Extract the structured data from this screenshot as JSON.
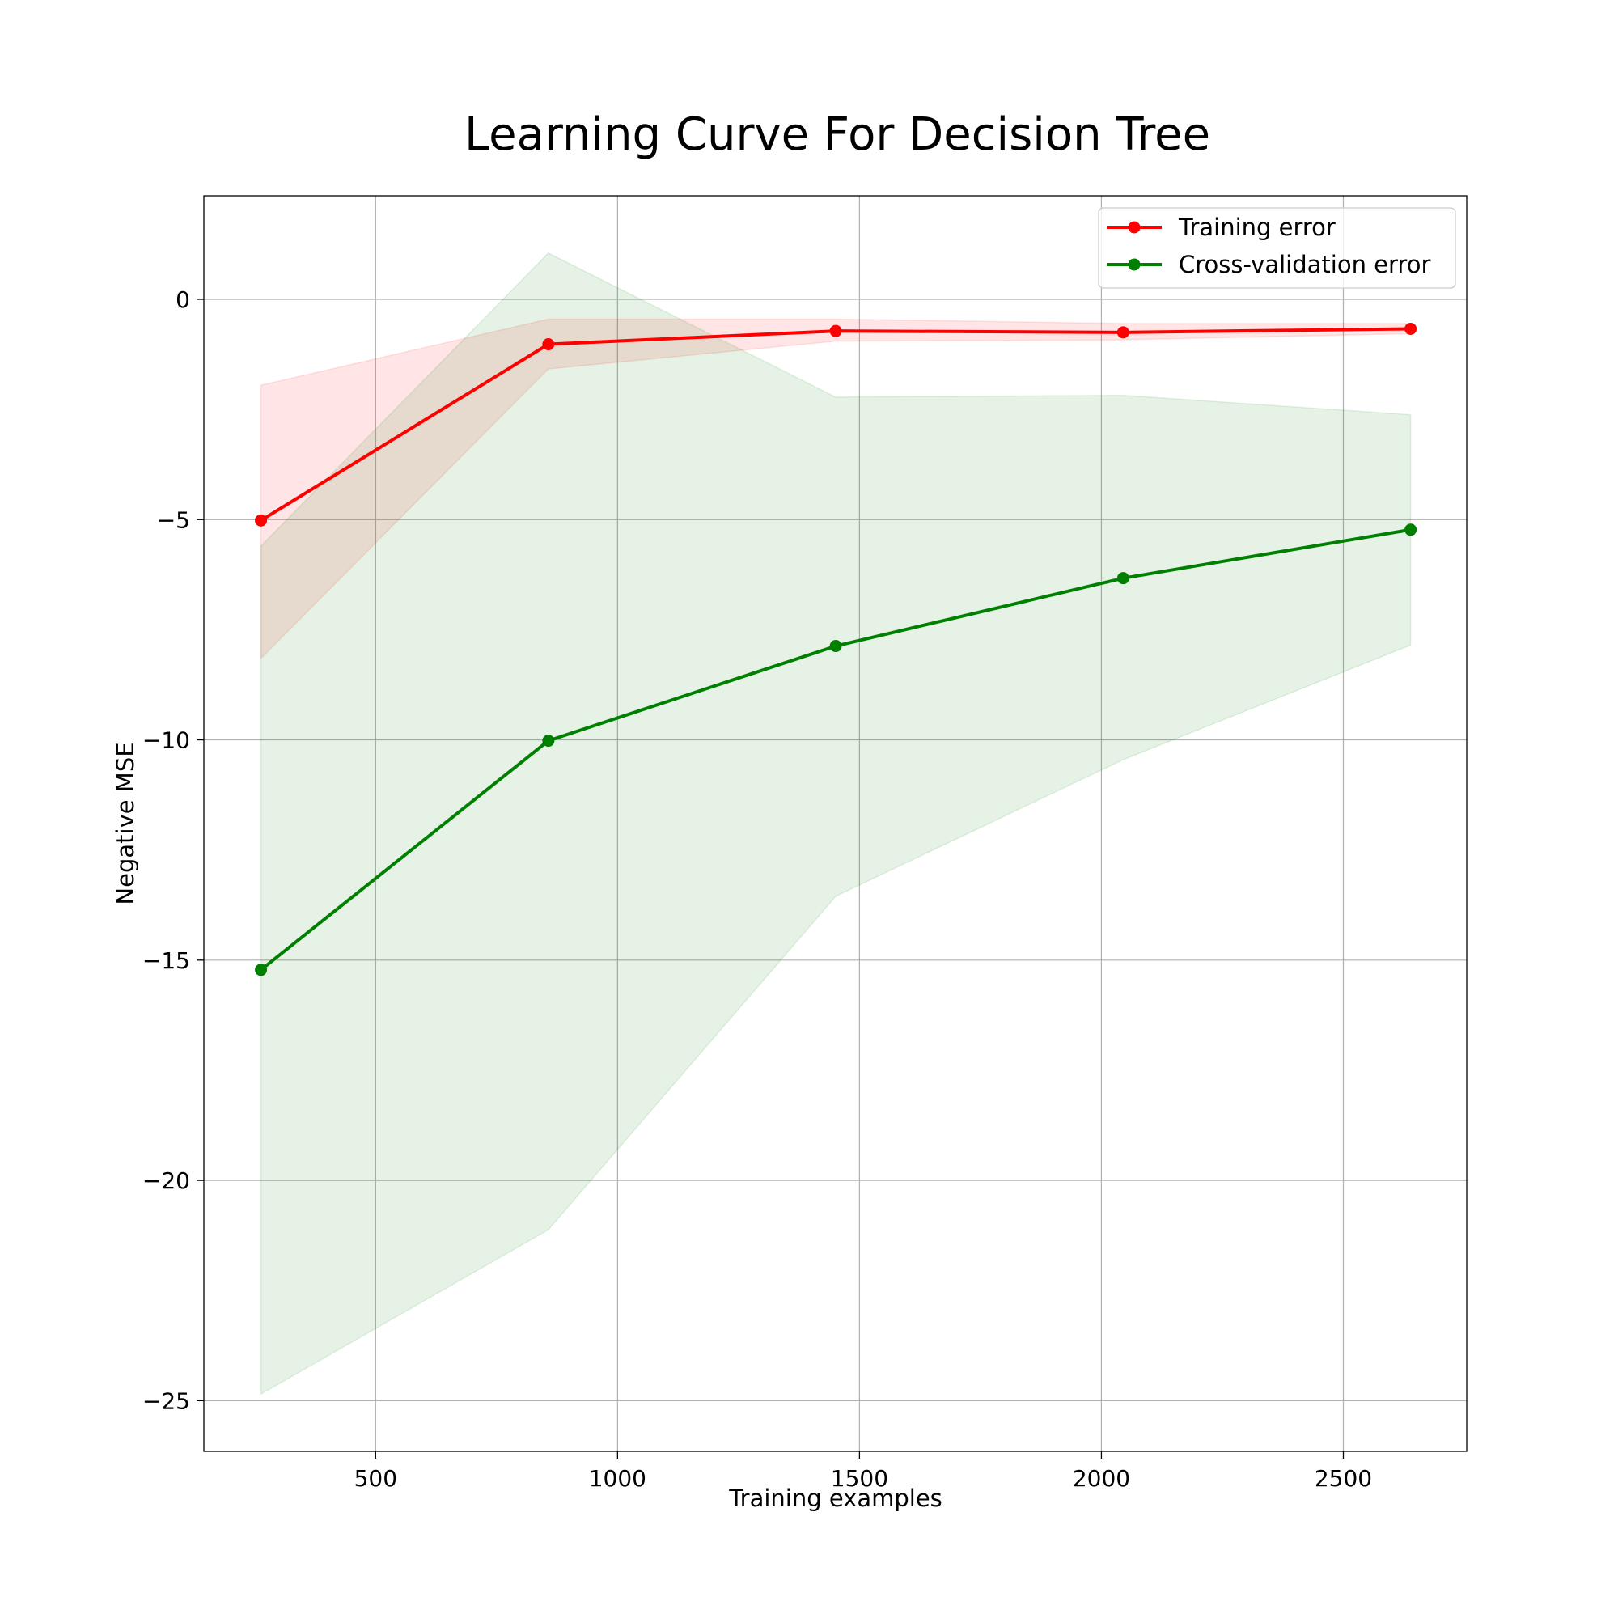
{
  "chart_data": {
    "type": "line",
    "title": "Learning Curve For Decision Tree",
    "xlabel": "Training examples",
    "ylabel": "Negative MSE",
    "xlim": [
      145,
      2755
    ],
    "ylim": [
      -26.15,
      2.35
    ],
    "xticks": [
      500,
      1000,
      1500,
      2000,
      2500
    ],
    "yticks": [
      0,
      -5,
      -10,
      -15,
      -20,
      -25
    ],
    "xtick_labels": [
      "500",
      "1000",
      "1500",
      "2000",
      "2500"
    ],
    "ytick_labels": [
      "0",
      "−5",
      "−10",
      "−15",
      "−20",
      "−25"
    ],
    "grid": true,
    "legend_position": "top-right",
    "x": [
      263,
      857,
      1451,
      2045,
      2639
    ],
    "series": [
      {
        "name": "Training error",
        "color": "#ff0000",
        "band_color": "#ff0000",
        "marker": "circle",
        "values": [
          -5.02,
          -1.02,
          -0.72,
          -0.75,
          -0.67
        ],
        "lower": [
          -8.15,
          -1.58,
          -0.95,
          -0.92,
          -0.78
        ],
        "upper": [
          -1.95,
          -0.45,
          -0.45,
          -0.55,
          -0.55
        ]
      },
      {
        "name": "Cross-validation error",
        "color": "#008000",
        "band_color": "#008000",
        "marker": "circle",
        "values": [
          -15.22,
          -10.02,
          -7.87,
          -6.33,
          -5.23
        ],
        "lower": [
          -24.85,
          -21.12,
          -13.55,
          -10.45,
          -7.85
        ],
        "upper": [
          -5.6,
          1.05,
          -2.22,
          -2.18,
          -2.62
        ]
      }
    ]
  }
}
